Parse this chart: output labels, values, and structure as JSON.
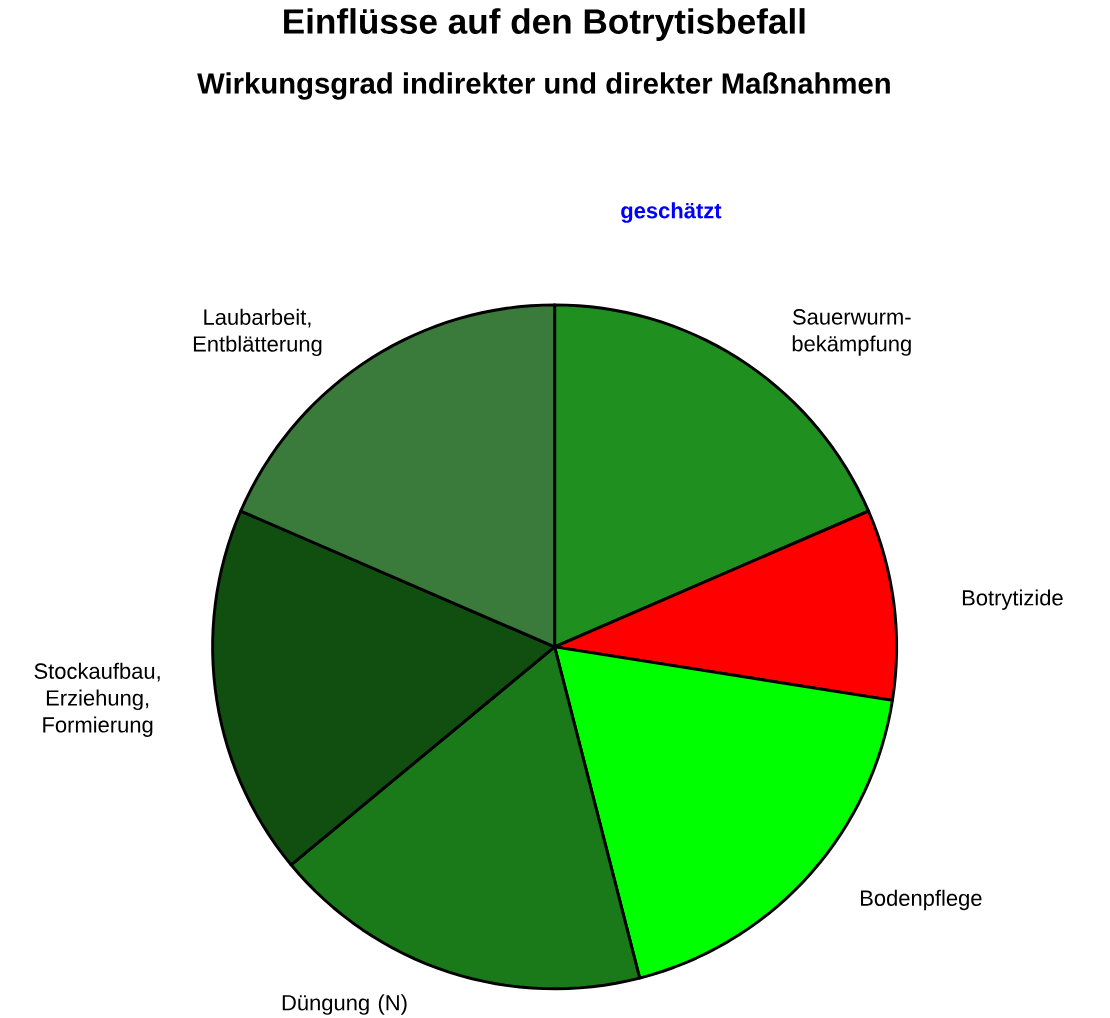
{
  "chart_data": {
    "type": "pie",
    "title": "Einflüsse auf den Botrytisbefall",
    "subtitle": "Wirkungsgrad indirekter und direkter Maßnahmen",
    "categories": [
      "Sauerwurm-bekämpfung",
      "Botrytizide",
      "Bodenpflege",
      "Düngung (N)",
      "Stockaufbau, Erziehung, Formierung",
      "Laubarbeit, Entblätterung"
    ],
    "values": [
      18.5,
      9,
      18.5,
      18,
      17.5,
      18.5
    ],
    "colors": [
      "#1f8f1f",
      "#ff0000",
      "#00ff00",
      "#1a7a1a",
      "#104f10",
      "#3a7a3a"
    ],
    "annotations": [
      "geschätzt"
    ]
  }
}
